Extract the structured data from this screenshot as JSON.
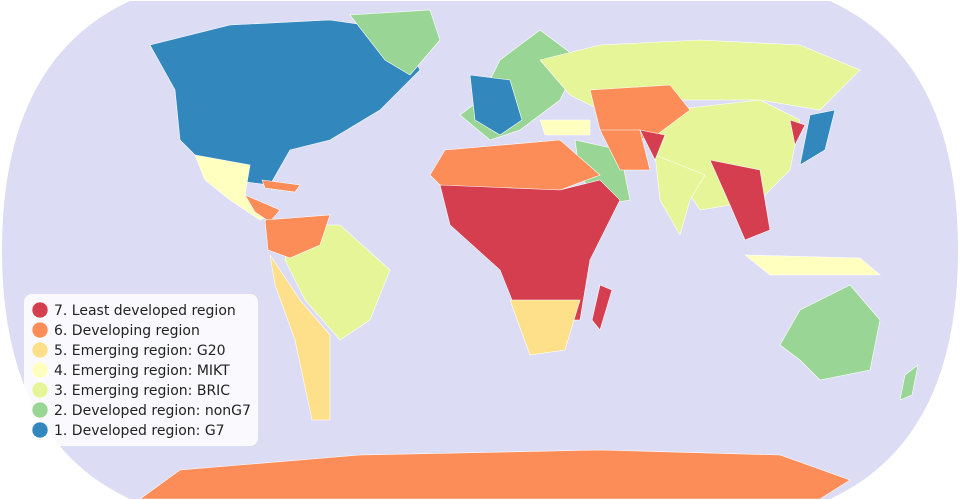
{
  "legend": {
    "items": [
      {
        "label": "7. Least developed region",
        "color": "#d53e4f"
      },
      {
        "label": "6. Developing region",
        "color": "#fc8d59"
      },
      {
        "label": "5. Emerging region: G20",
        "color": "#fee08b"
      },
      {
        "label": "4. Emerging region: MIKT",
        "color": "#ffffbf"
      },
      {
        "label": "3. Emerging region: BRIC",
        "color": "#e6f598"
      },
      {
        "label": "2. Developed region: nonG7",
        "color": "#99d594"
      },
      {
        "label": "1. Developed region: G7",
        "color": "#3288bd"
      }
    ]
  }
}
